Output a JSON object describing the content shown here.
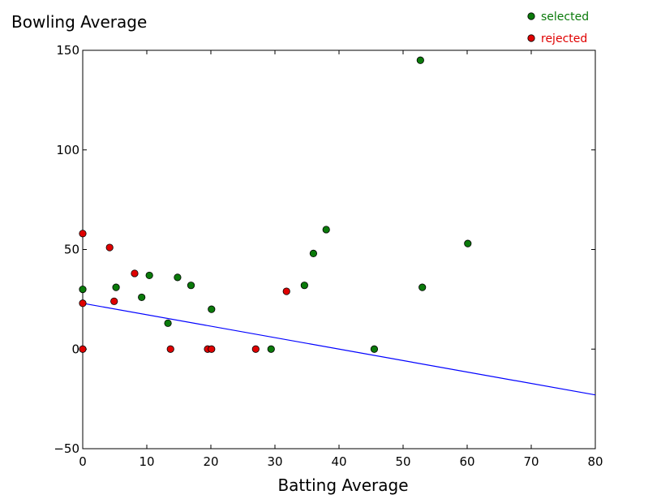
{
  "chart_data": {
    "type": "scatter",
    "title": "",
    "xlabel": "Batting Average",
    "ylabel": "Bowling Average",
    "xlim": [
      0,
      80
    ],
    "ylim": [
      -50,
      150
    ],
    "x_ticks": [
      0,
      10,
      20,
      30,
      40,
      50,
      60,
      70,
      80
    ],
    "y_ticks": [
      -50,
      0,
      50,
      100,
      150
    ],
    "x_tick_labels": [
      "0",
      "10",
      "20",
      "30",
      "40",
      "50",
      "60",
      "70",
      "80"
    ],
    "y_tick_labels": [
      "−50",
      "0",
      "50",
      "100",
      "150"
    ],
    "grid": false,
    "legend_position": "top-right, outside plot",
    "series": [
      {
        "name": "selected",
        "color": "#0a7a0a",
        "points": [
          {
            "x": 0,
            "y": 30
          },
          {
            "x": 5.2,
            "y": 31
          },
          {
            "x": 9.2,
            "y": 26
          },
          {
            "x": 10.4,
            "y": 37
          },
          {
            "x": 13.3,
            "y": 13
          },
          {
            "x": 14.8,
            "y": 36
          },
          {
            "x": 16.9,
            "y": 32
          },
          {
            "x": 20.1,
            "y": 20
          },
          {
            "x": 29.4,
            "y": 0
          },
          {
            "x": 34.6,
            "y": 32
          },
          {
            "x": 36.0,
            "y": 48
          },
          {
            "x": 38.0,
            "y": 60
          },
          {
            "x": 45.5,
            "y": 0
          },
          {
            "x": 52.7,
            "y": 145
          },
          {
            "x": 53.0,
            "y": 31
          },
          {
            "x": 60.1,
            "y": 53
          }
        ]
      },
      {
        "name": "rejected",
        "color": "#e00000",
        "points": [
          {
            "x": 0,
            "y": 58
          },
          {
            "x": 0,
            "y": 23
          },
          {
            "x": 0,
            "y": 0
          },
          {
            "x": 4.2,
            "y": 51
          },
          {
            "x": 4.9,
            "y": 24
          },
          {
            "x": 8.1,
            "y": 38
          },
          {
            "x": 13.7,
            "y": 0
          },
          {
            "x": 19.5,
            "y": 0
          },
          {
            "x": 20.1,
            "y": 0
          },
          {
            "x": 27.0,
            "y": 0
          },
          {
            "x": 31.8,
            "y": 29
          }
        ]
      }
    ],
    "lines": [
      {
        "name": "",
        "color": "#0000ff",
        "x": [
          0,
          80
        ],
        "y": [
          23,
          -23
        ]
      }
    ]
  }
}
